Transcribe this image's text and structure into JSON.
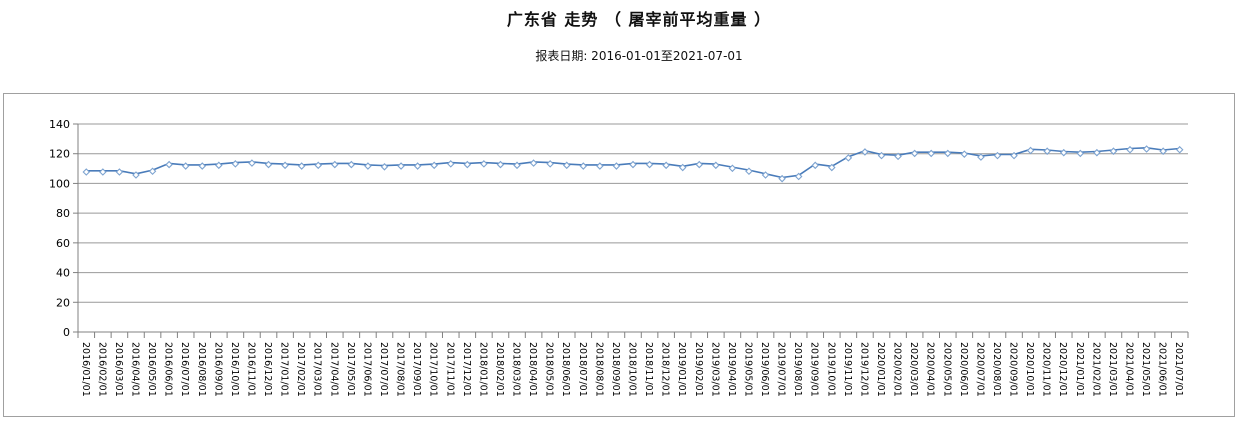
{
  "header": {
    "title": "广东省 走势 （ 屠宰前平均重量 ）",
    "subtitle": "报表日期: 2016-01-01至2021-07-01"
  },
  "chart_data": {
    "type": "line",
    "title": "广东省 走势 （ 屠宰前平均重量 ）",
    "subtitle": "报表日期: 2016-01-01至2021-07-01",
    "xlabel": "",
    "ylabel": "",
    "ylim": [
      0,
      140
    ],
    "y_ticks": [
      0,
      20,
      40,
      60,
      80,
      100,
      120,
      140
    ],
    "grid": true,
    "legend": "none",
    "x_labels": [
      "2016/01/01",
      "2016/02/01",
      "2016/03/01",
      "2016/04/01",
      "2016/05/01",
      "2016/06/01",
      "2016/07/01",
      "2016/08/01",
      "2016/09/01",
      "2016/10/01",
      "2016/11/01",
      "2016/12/01",
      "2017/01/01",
      "2017/02/01",
      "2017/03/01",
      "2017/04/01",
      "2017/05/01",
      "2017/06/01",
      "2017/07/01",
      "2017/08/01",
      "2017/09/01",
      "2017/10/01",
      "2017/11/01",
      "2017/12/01",
      "2018/01/01",
      "2018/02/01",
      "2018/03/01",
      "2018/04/01",
      "2018/05/01",
      "2018/06/01",
      "2018/07/01",
      "2018/08/01",
      "2018/09/01",
      "2018/10/01",
      "2018/11/01",
      "2018/12/01",
      "2019/01/01",
      "2019/02/01",
      "2019/03/01",
      "2019/04/01",
      "2019/05/01",
      "2019/06/01",
      "2019/07/01",
      "2019/08/01",
      "2019/09/01",
      "2019/10/01",
      "2019/11/01",
      "2019/12/01",
      "2020/01/01",
      "2020/02/01",
      "2020/03/01",
      "2020/04/01",
      "2020/05/01",
      "2020/06/01",
      "2020/07/01",
      "2020/08/01",
      "2020/09/01",
      "2020/10/01",
      "2020/11/01",
      "2020/12/01",
      "2021/01/01",
      "2021/02/01",
      "2021/03/01",
      "2021/04/01",
      "2021/05/01",
      "2021/06/01",
      "2021/07/01"
    ],
    "series": [
      {
        "name": "屠宰前平均重量",
        "values": [
          108.5,
          108.5,
          108.5,
          106.5,
          109,
          113.5,
          112.5,
          112.5,
          113,
          114,
          114.5,
          113.5,
          113,
          112.5,
          113,
          113.5,
          113.5,
          112.5,
          112,
          112.5,
          112.5,
          113,
          114,
          113.5,
          114,
          113.5,
          113,
          114.5,
          114,
          113,
          112.5,
          112.5,
          112.5,
          113.5,
          113.5,
          113,
          111.5,
          113.5,
          113,
          111,
          109,
          106.5,
          104,
          105.5,
          113,
          111.5,
          118,
          122,
          119.5,
          119,
          121,
          121,
          121,
          120.5,
          118.5,
          119.5,
          119.5,
          123,
          122.5,
          121.5,
          121,
          121.5,
          122.5,
          123.5,
          124,
          122.5,
          123.5
        ]
      }
    ],
    "colors": {
      "line": "#4a7cba",
      "marker_stroke": "#7da3d0",
      "marker_fill": "#ffffff",
      "grid": "#999999",
      "axis": "#808080",
      "frame_border": "#a0a0a0",
      "text": "#000000"
    }
  }
}
